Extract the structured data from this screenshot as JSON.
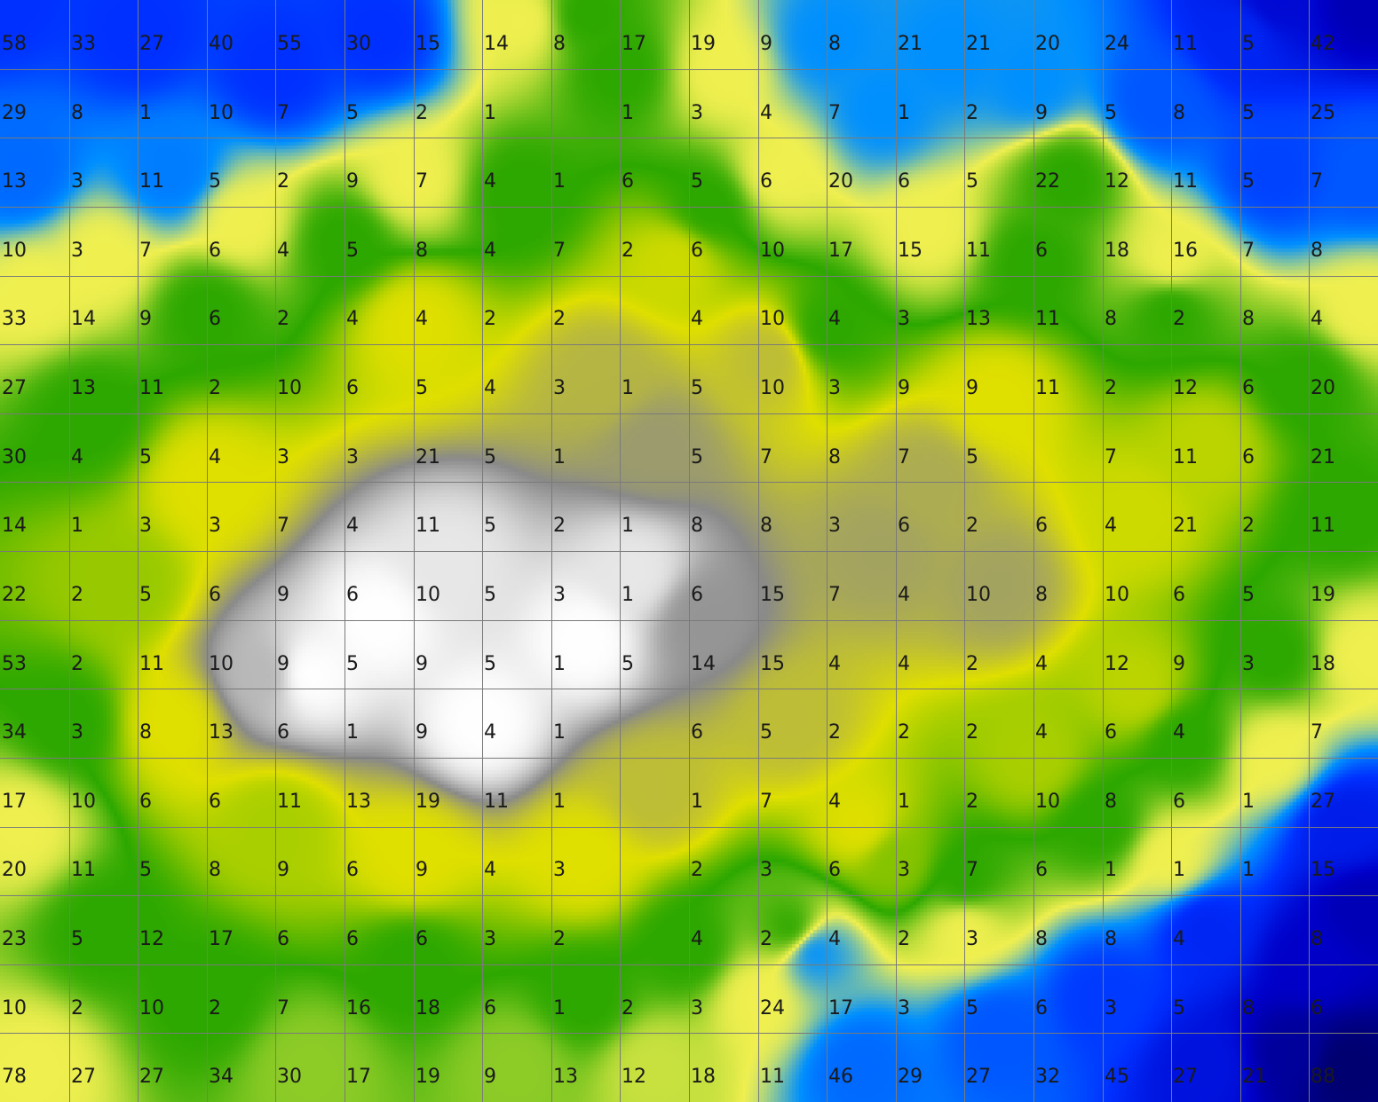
{
  "chart_data": {
    "type": "heatmap",
    "title": "",
    "xlabel": "",
    "ylabel": "",
    "rows": 16,
    "cols": 20,
    "grid": true,
    "values": [
      [
        "58",
        "33",
        "27",
        "40",
        "55",
        "30",
        "15",
        "14",
        "8",
        "17",
        "19",
        "9",
        "8",
        "21",
        "21",
        "20",
        "24",
        "11",
        "5",
        "42"
      ],
      [
        "29",
        "8",
        "1",
        "10",
        "7",
        "5",
        "2",
        "1",
        "",
        "1",
        "3",
        "4",
        "7",
        "1",
        "2",
        "9",
        "5",
        "8",
        "5",
        "25"
      ],
      [
        "13",
        "3",
        "11",
        "5",
        "2",
        "9",
        "7",
        "4",
        "1",
        "6",
        "5",
        "6",
        "20",
        "6",
        "5",
        "22",
        "12",
        "11",
        "5",
        "7"
      ],
      [
        "10",
        "3",
        "7",
        "6",
        "4",
        "5",
        "8",
        "4",
        "7",
        "2",
        "6",
        "10",
        "17",
        "15",
        "11",
        "6",
        "18",
        "16",
        "7",
        "8"
      ],
      [
        "33",
        "14",
        "9",
        "6",
        "2",
        "4",
        "4",
        "2",
        "2",
        "",
        "4",
        "10",
        "4",
        "3",
        "13",
        "11",
        "8",
        "2",
        "8",
        "4"
      ],
      [
        "27",
        "13",
        "11",
        "2",
        "10",
        "6",
        "5",
        "4",
        "3",
        "1",
        "5",
        "10",
        "3",
        "9",
        "9",
        "11",
        "2",
        "12",
        "6",
        "20"
      ],
      [
        "30",
        "4",
        "5",
        "4",
        "3",
        "3",
        "21",
        "5",
        "1",
        "",
        "5",
        "7",
        "8",
        "7",
        "5",
        "",
        "7",
        "11",
        "6",
        "21"
      ],
      [
        "14",
        "1",
        "3",
        "3",
        "7",
        "4",
        "11",
        "5",
        "2",
        "1",
        "8",
        "8",
        "3",
        "6",
        "2",
        "6",
        "4",
        "21",
        "2",
        "11"
      ],
      [
        "22",
        "2",
        "5",
        "6",
        "9",
        "6",
        "10",
        "5",
        "3",
        "1",
        "6",
        "15",
        "7",
        "4",
        "10",
        "8",
        "10",
        "6",
        "5",
        "19"
      ],
      [
        "53",
        "2",
        "11",
        "10",
        "9",
        "5",
        "9",
        "5",
        "1",
        "5",
        "14",
        "15",
        "4",
        "4",
        "2",
        "4",
        "12",
        "9",
        "3",
        "18"
      ],
      [
        "34",
        "3",
        "8",
        "13",
        "6",
        "1",
        "9",
        "4",
        "1",
        "",
        "6",
        "5",
        "2",
        "2",
        "2",
        "4",
        "6",
        "4",
        "",
        "7"
      ],
      [
        "17",
        "10",
        "6",
        "6",
        "11",
        "13",
        "19",
        "11",
        "1",
        "",
        "1",
        "7",
        "4",
        "1",
        "2",
        "10",
        "8",
        "6",
        "1",
        "27"
      ],
      [
        "20",
        "11",
        "5",
        "8",
        "9",
        "6",
        "9",
        "4",
        "3",
        "",
        "2",
        "3",
        "6",
        "3",
        "7",
        "6",
        "1",
        "1",
        "1",
        "15"
      ],
      [
        "23",
        "5",
        "12",
        "17",
        "6",
        "6",
        "6",
        "3",
        "2",
        "",
        "4",
        "2",
        "4",
        "2",
        "3",
        "8",
        "8",
        "4",
        "",
        "8"
      ],
      [
        "10",
        "2",
        "10",
        "2",
        "7",
        "16",
        "18",
        "6",
        "1",
        "2",
        "3",
        "24",
        "17",
        "3",
        "5",
        "6",
        "3",
        "5",
        "8",
        "6"
      ],
      [
        "78",
        "27",
        "27",
        "34",
        "30",
        "17",
        "19",
        "9",
        "13",
        "12",
        "18",
        "11",
        "46",
        "29",
        "27",
        "32",
        "45",
        "27",
        "21",
        "88"
      ]
    ],
    "colors": {
      "white": "#ffffff",
      "gray": "#8a8a8a",
      "yellow": "#e0e000",
      "light_yellow": "#f0f050",
      "green": "#2ca800",
      "teal": "#60b0b8",
      "sky_blue": "#0090ff",
      "blue": "#0030ff",
      "deep_blue": "#0000c8",
      "navy": "#000070"
    }
  }
}
